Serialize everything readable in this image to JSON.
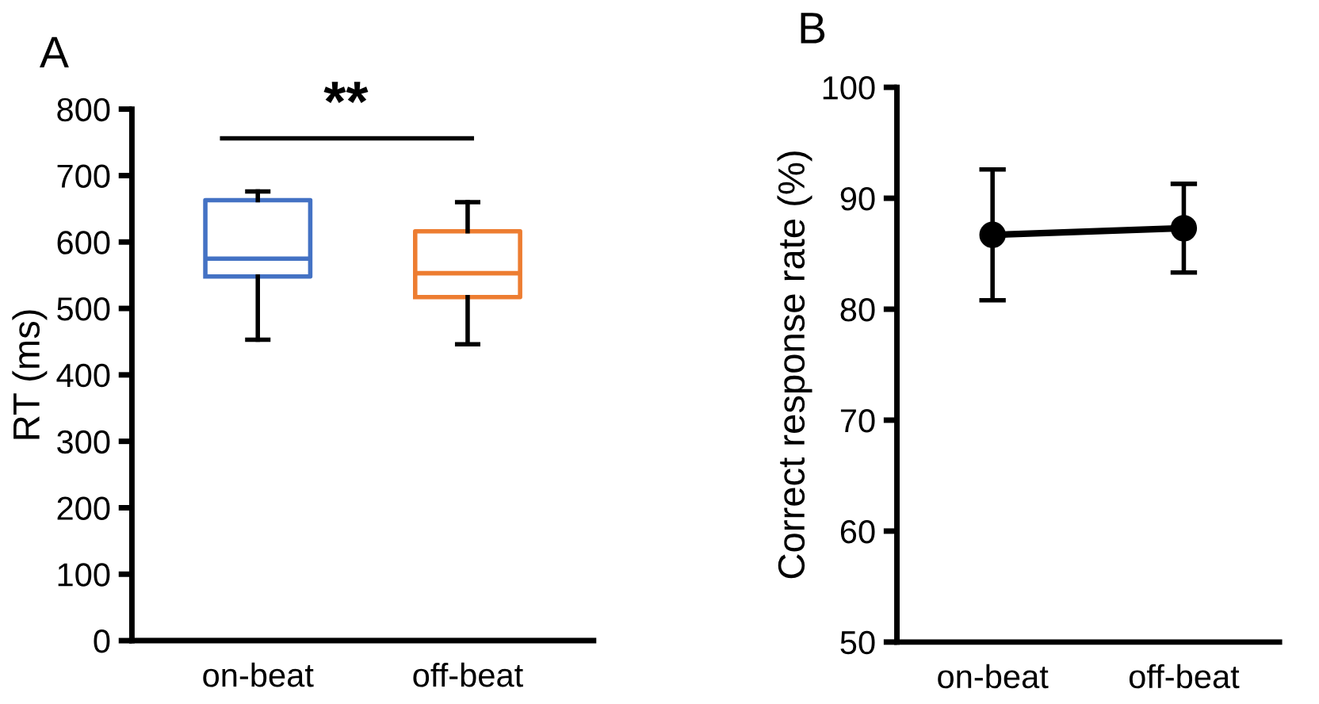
{
  "chart_data": [
    {
      "type": "box",
      "title": "A",
      "ylabel": "RT (ms)",
      "categories": [
        "on-beat",
        "off-beat"
      ],
      "colors": [
        "#4472c4",
        "#ed7d31"
      ],
      "boxes": [
        {
          "low": 453,
          "q1": 548,
          "median": 575,
          "q3": 663,
          "high": 676
        },
        {
          "low": 446,
          "q1": 517,
          "median": 553,
          "q3": 616,
          "high": 660
        }
      ],
      "ylim": [
        0,
        800
      ],
      "yticks": [
        0,
        100,
        200,
        300,
        400,
        500,
        600,
        700,
        800
      ],
      "grid": false,
      "legend": false,
      "annotations": [
        "**"
      ]
    },
    {
      "type": "line",
      "title": "B",
      "ylabel": "Correct response rate (%)",
      "categories": [
        "on-beat",
        "off-beat"
      ],
      "series": [
        {
          "color": "#000000",
          "values": [
            86.7,
            87.3
          ],
          "errors": [
            5.9,
            4.0
          ]
        }
      ],
      "marker": "circle",
      "line_style": "solid",
      "ylim": [
        50,
        100
      ],
      "yticks": [
        50,
        60,
        70,
        80,
        90,
        100
      ],
      "grid": false,
      "legend": false
    }
  ]
}
